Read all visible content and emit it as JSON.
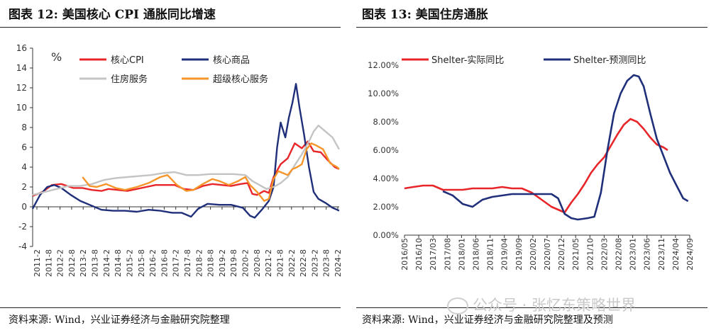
{
  "left": {
    "title": "图表 12:   美国核心 CPI 通胀同比增速",
    "source": "资料来源:  Wind，兴业证券经济与金融研究院整理",
    "chart_data": {
      "type": "line",
      "title": "美国核心 CPI 通胀同比增速",
      "ylabel": "%",
      "ylim": [
        -4,
        16
      ],
      "yticks": [
        -4,
        -2,
        0,
        2,
        4,
        6,
        8,
        10,
        12,
        14,
        16
      ],
      "x_range": [
        2011.083,
        2024.083
      ],
      "categories": [
        "2011-2",
        "2011-8",
        "2012-2",
        "2012-8",
        "2013-2",
        "2013-8",
        "2014-2",
        "2014-8",
        "2015-2",
        "2015-8",
        "2016-2",
        "2016-8",
        "2017-2",
        "2017-8",
        "2018-2",
        "2018-8",
        "2019-2",
        "2019-8",
        "2020-2",
        "2020-8",
        "2021-2",
        "2021-8",
        "2022-2",
        "2022-8",
        "2023-2",
        "2023-8",
        "2024-2"
      ],
      "series": [
        {
          "name": "核心CPI",
          "color": "#e8262a",
          "x": [
            2011.08,
            2011.5,
            2011.9,
            2012.3,
            2012.8,
            2013.2,
            2013.6,
            2014.0,
            2014.3,
            2014.7,
            2015.1,
            2015.5,
            2015.9,
            2016.3,
            2016.7,
            2017.1,
            2017.5,
            2017.9,
            2018.3,
            2018.7,
            2019.1,
            2019.5,
            2019.9,
            2020.2,
            2020.4,
            2020.6,
            2020.9,
            2021.1,
            2021.3,
            2021.6,
            2021.9,
            2022.2,
            2022.5,
            2022.75,
            2023.0,
            2023.3,
            2023.6,
            2023.9,
            2024.08
          ],
          "values": [
            1.1,
            1.5,
            2.2,
            2.3,
            1.9,
            1.9,
            1.7,
            1.6,
            1.8,
            1.7,
            1.6,
            1.8,
            2.0,
            2.2,
            2.2,
            2.2,
            1.8,
            1.7,
            2.1,
            2.3,
            2.2,
            2.1,
            2.3,
            2.4,
            1.3,
            1.2,
            1.6,
            1.4,
            3.0,
            4.3,
            4.9,
            6.4,
            5.9,
            6.6,
            5.6,
            5.5,
            4.7,
            4.0,
            3.8
          ]
        },
        {
          "name": "核心商品",
          "color": "#1f2f7a",
          "x": [
            2011.08,
            2011.4,
            2011.7,
            2012.0,
            2012.3,
            2012.7,
            2013.1,
            2013.5,
            2014.0,
            2014.5,
            2015.0,
            2015.5,
            2016.0,
            2016.5,
            2017.0,
            2017.4,
            2017.8,
            2018.1,
            2018.5,
            2019.0,
            2019.5,
            2020.0,
            2020.3,
            2020.5,
            2020.8,
            2021.1,
            2021.3,
            2021.45,
            2021.6,
            2021.8,
            2021.95,
            2022.1,
            2022.25,
            2022.4,
            2022.6,
            2022.8,
            2023.0,
            2023.2,
            2023.5,
            2023.8,
            2024.0,
            2024.08
          ],
          "values": [
            -0.2,
            1.2,
            2.0,
            2.2,
            1.9,
            1.2,
            0.6,
            0.2,
            -0.3,
            -0.4,
            -0.4,
            -0.5,
            -0.3,
            -0.4,
            -0.6,
            -0.6,
            -1.0,
            -0.2,
            0.3,
            0.2,
            0.2,
            -0.1,
            -0.9,
            -1.1,
            -0.3,
            0.6,
            2.0,
            6.0,
            8.5,
            7.0,
            9.0,
            10.5,
            12.4,
            10.0,
            7.2,
            4.0,
            1.5,
            0.8,
            0.4,
            -0.1,
            -0.3,
            -0.4
          ]
        },
        {
          "name": "住房服务",
          "color": "#c4c4c4",
          "x": [
            2011.08,
            2011.6,
            2012.1,
            2012.6,
            2013.1,
            2013.6,
            2014.1,
            2014.6,
            2015.1,
            2015.6,
            2016.1,
            2016.6,
            2017.1,
            2017.6,
            2018.1,
            2018.6,
            2019.1,
            2019.6,
            2020.1,
            2020.4,
            2020.7,
            2021.0,
            2021.3,
            2021.6,
            2021.9,
            2022.2,
            2022.5,
            2022.8,
            2023.0,
            2023.2,
            2023.5,
            2023.8,
            2024.08
          ],
          "values": [
            1.2,
            1.5,
            1.8,
            2.1,
            2.1,
            2.3,
            2.7,
            2.9,
            3.0,
            3.1,
            3.2,
            3.4,
            3.5,
            3.2,
            3.2,
            3.3,
            3.3,
            3.3,
            3.2,
            2.6,
            2.2,
            1.8,
            2.0,
            2.4,
            3.0,
            4.2,
            5.3,
            6.6,
            7.6,
            8.2,
            7.6,
            7.0,
            5.8
          ]
        },
        {
          "name": "超级核心服务",
          "color": "#f5952a",
          "x": [
            2013.2,
            2013.5,
            2013.8,
            2014.2,
            2014.6,
            2015.0,
            2015.5,
            2016.0,
            2016.5,
            2016.8,
            2017.2,
            2017.6,
            2017.9,
            2018.3,
            2018.7,
            2019.0,
            2019.4,
            2019.8,
            2020.1,
            2020.3,
            2020.6,
            2020.9,
            2021.1,
            2021.3,
            2021.5,
            2021.7,
            2021.9,
            2022.1,
            2022.3,
            2022.5,
            2022.7,
            2022.9,
            2023.1,
            2023.4,
            2023.7,
            2024.0,
            2024.08
          ],
          "values": [
            3.0,
            2.1,
            2.0,
            2.3,
            1.9,
            1.7,
            2.0,
            2.4,
            3.0,
            3.2,
            2.2,
            1.6,
            1.7,
            2.3,
            2.8,
            2.6,
            2.2,
            2.6,
            3.0,
            2.2,
            1.5,
            0.6,
            0.8,
            2.8,
            3.6,
            3.4,
            3.2,
            3.8,
            4.0,
            4.3,
            5.8,
            6.4,
            6.2,
            5.8,
            4.4,
            4.0,
            3.8
          ]
        }
      ]
    }
  },
  "right": {
    "title": "图表 13:   美国住房通胀",
    "source": "资料来源:  Wind，兴业证券经济与金融研究院整理及预测",
    "chart_data": {
      "type": "line",
      "title": "美国住房通胀",
      "ylim": [
        0,
        12
      ],
      "yticks": [
        "0.00%",
        "2.00%",
        "4.00%",
        "6.00%",
        "8.00%",
        "10.00%",
        "12.00%"
      ],
      "yvalues": [
        0,
        2,
        4,
        6,
        8,
        10,
        12
      ],
      "x_range": [
        2016.333,
        2025.0
      ],
      "categories": [
        "2016/05",
        "2016/10",
        "2017/03",
        "2017/08",
        "2018/01",
        "2018/06",
        "2018/11",
        "2019/04",
        "2019/09",
        "2020/02",
        "2020/07",
        "2020/12",
        "2021/05",
        "2021/10",
        "2022/03",
        "2022/08",
        "2023/01",
        "2023/06",
        "2023/11",
        "2024/04",
        "2024/09"
      ],
      "series": [
        {
          "name": "Shelter-实际同比",
          "color": "#e8262a",
          "x": [
            2016.33,
            2016.6,
            2016.9,
            2017.2,
            2017.5,
            2017.8,
            2018.1,
            2018.4,
            2018.7,
            2019.0,
            2019.3,
            2019.6,
            2019.9,
            2020.2,
            2020.5,
            2020.8,
            2021.0,
            2021.2,
            2021.4,
            2021.6,
            2021.8,
            2022.0,
            2022.2,
            2022.4,
            2022.6,
            2022.8,
            2023.0,
            2023.2,
            2023.4,
            2023.6,
            2023.8,
            2024.0,
            2024.2,
            2024.33
          ],
          "values": [
            3.3,
            3.4,
            3.5,
            3.5,
            3.2,
            3.2,
            3.2,
            3.3,
            3.3,
            3.3,
            3.4,
            3.3,
            3.3,
            3.0,
            2.5,
            2.0,
            1.8,
            1.6,
            2.3,
            2.9,
            3.6,
            4.4,
            5.0,
            5.5,
            6.3,
            7.1,
            7.8,
            8.2,
            8.0,
            7.5,
            6.9,
            6.4,
            6.2,
            6.0
          ]
        },
        {
          "name": "Shelter-预测同比",
          "color": "#1f2f7a",
          "x": [
            2017.5,
            2017.8,
            2018.1,
            2018.4,
            2018.7,
            2019.0,
            2019.3,
            2019.6,
            2019.9,
            2020.2,
            2020.5,
            2020.8,
            2021.0,
            2021.2,
            2021.4,
            2021.6,
            2021.9,
            2022.1,
            2022.3,
            2022.5,
            2022.7,
            2022.9,
            2023.1,
            2023.3,
            2023.45,
            2023.6,
            2023.8,
            2024.0,
            2024.2,
            2024.4,
            2024.6,
            2024.8,
            2024.95
          ],
          "values": [
            3.1,
            2.8,
            2.2,
            2.0,
            2.5,
            2.7,
            2.8,
            2.9,
            2.9,
            2.9,
            2.9,
            2.9,
            2.6,
            1.5,
            1.2,
            1.1,
            1.2,
            1.3,
            3.0,
            6.0,
            8.6,
            10.0,
            10.9,
            11.3,
            11.2,
            10.5,
            8.6,
            6.8,
            5.6,
            4.4,
            3.5,
            2.6,
            2.4
          ]
        }
      ]
    }
  },
  "watermark": {
    "text": "公众号 · 张忆东策略世界"
  }
}
